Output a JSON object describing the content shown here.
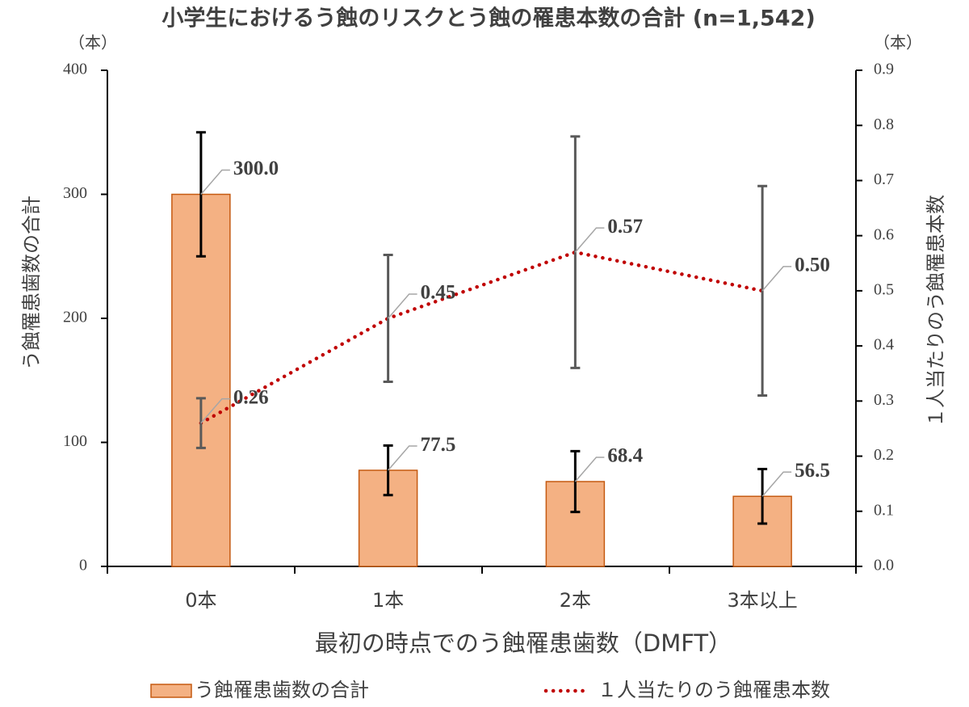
{
  "chart_data": {
    "type": "bar-line",
    "title": "小学生におけるう蝕のリスクとう蝕の罹患本数の合計 (n=1,542)",
    "y_unit": "（本）",
    "y2_unit": "（本）",
    "ylabel": "う蝕罹患歯数の合計",
    "y2label": "１人当たりのう蝕罹患本数",
    "xlabel": "最初の時点でのう蝕罹患歯数（DMFT）",
    "categories": [
      "0本",
      "1本",
      "2本",
      "3本以上"
    ],
    "series": [
      {
        "name": "う蝕罹患歯数の合計",
        "type": "bar",
        "axis": "y",
        "color": "#f4b183",
        "edgecolor": "#c55a11",
        "values": [
          300,
          77.5,
          68.4,
          56.5
        ],
        "value_labels": [
          "300.0",
          "77.5",
          "68.4",
          "56.5"
        ],
        "errors": [
          50,
          20,
          24.5,
          22
        ],
        "error_color": "#000000"
      },
      {
        "name": "１人当たりのう蝕罹患本数",
        "type": "line",
        "axis": "y2",
        "color": "#c00000",
        "linestyle": "dotted",
        "values": [
          0.26,
          0.45,
          0.57,
          0.5
        ],
        "value_labels": [
          "0.26",
          "0.45",
          "0.57",
          "0.50"
        ],
        "errors": [
          0.045,
          0.115,
          0.21,
          0.19
        ],
        "error_color": "#595959"
      }
    ],
    "ylim": [
      0,
      400
    ],
    "yticks": [
      0,
      100,
      200,
      300,
      400
    ],
    "y2lim": [
      0,
      0.9
    ],
    "y2ticks": [
      {
        "value": 0,
        "label": "0.0"
      },
      0.1,
      0.2,
      0.3,
      0.4,
      0.5,
      0.6,
      0.7,
      0.8,
      0.9
    ],
    "grid": false,
    "legend": "bottom"
  }
}
